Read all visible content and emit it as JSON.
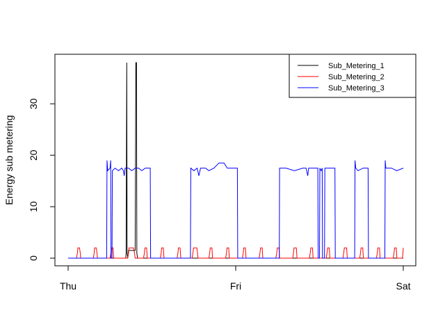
{
  "chart_data": {
    "type": "line",
    "title": "",
    "xlabel": "",
    "ylabel": "Energy sub metering",
    "x_ticks": [
      {
        "label": "Thu",
        "value": 0
      },
      {
        "label": "Fri",
        "value": 1
      },
      {
        "label": "Sat",
        "value": 2
      }
    ],
    "xlim": [
      0,
      2
    ],
    "y_ticks": [
      0,
      10,
      20,
      30
    ],
    "ylim": [
      0,
      38
    ],
    "legend_position": "top-right",
    "series": [
      {
        "name": "Sub_Metering_1",
        "color": "#000000",
        "points": [
          [
            0,
            0
          ],
          [
            0.344,
            0
          ],
          [
            0.346,
            1
          ],
          [
            0.35,
            38
          ],
          [
            0.352,
            1
          ],
          [
            0.356,
            0
          ],
          [
            0.36,
            1.5
          ],
          [
            0.38,
            1.5
          ],
          [
            0.4,
            1.5
          ],
          [
            0.404,
            38
          ],
          [
            0.408,
            38
          ],
          [
            0.41,
            1
          ],
          [
            0.414,
            0
          ],
          [
            2,
            0
          ]
        ]
      },
      {
        "name": "Sub_Metering_2",
        "color": "#ff0000",
        "points": [
          [
            0,
            0
          ],
          [
            0.05,
            0
          ],
          [
            0.055,
            1
          ],
          [
            0.058,
            2
          ],
          [
            0.068,
            2
          ],
          [
            0.072,
            1
          ],
          [
            0.075,
            0
          ],
          [
            0.15,
            0
          ],
          [
            0.155,
            1
          ],
          [
            0.158,
            2
          ],
          [
            0.168,
            2
          ],
          [
            0.172,
            1
          ],
          [
            0.175,
            0
          ],
          [
            0.25,
            0
          ],
          [
            0.255,
            1
          ],
          [
            0.258,
            2
          ],
          [
            0.268,
            2
          ],
          [
            0.272,
            0
          ],
          [
            0.355,
            0
          ],
          [
            0.36,
            1
          ],
          [
            0.364,
            2
          ],
          [
            0.39,
            2
          ],
          [
            0.396,
            1
          ],
          [
            0.4,
            0
          ],
          [
            0.45,
            0
          ],
          [
            0.455,
            1
          ],
          [
            0.458,
            2
          ],
          [
            0.468,
            2
          ],
          [
            0.472,
            0
          ],
          [
            0.55,
            0
          ],
          [
            0.555,
            1
          ],
          [
            0.558,
            2
          ],
          [
            0.568,
            2
          ],
          [
            0.572,
            0
          ],
          [
            0.65,
            0
          ],
          [
            0.655,
            1
          ],
          [
            0.658,
            2
          ],
          [
            0.668,
            2
          ],
          [
            0.672,
            0
          ],
          [
            0.74,
            0
          ],
          [
            0.745,
            1
          ],
          [
            0.748,
            2
          ],
          [
            0.768,
            2
          ],
          [
            0.772,
            1
          ],
          [
            0.775,
            0
          ],
          [
            0.84,
            0
          ],
          [
            0.845,
            1
          ],
          [
            0.848,
            2
          ],
          [
            0.858,
            2
          ],
          [
            0.862,
            0
          ],
          [
            0.94,
            0
          ],
          [
            0.945,
            1
          ],
          [
            0.948,
            2
          ],
          [
            0.958,
            2
          ],
          [
            0.962,
            0
          ],
          [
            1.04,
            0
          ],
          [
            1.045,
            1
          ],
          [
            1.048,
            2
          ],
          [
            1.058,
            2
          ],
          [
            1.062,
            0
          ],
          [
            1.14,
            0
          ],
          [
            1.145,
            1
          ],
          [
            1.148,
            2
          ],
          [
            1.158,
            2
          ],
          [
            1.162,
            0
          ],
          [
            1.24,
            0
          ],
          [
            1.245,
            1
          ],
          [
            1.248,
            2
          ],
          [
            1.258,
            2
          ],
          [
            1.262,
            0
          ],
          [
            1.34,
            0
          ],
          [
            1.345,
            1
          ],
          [
            1.348,
            2
          ],
          [
            1.362,
            2
          ],
          [
            1.366,
            0
          ],
          [
            1.44,
            0
          ],
          [
            1.445,
            1
          ],
          [
            1.448,
            2
          ],
          [
            1.458,
            2
          ],
          [
            1.462,
            0
          ],
          [
            1.54,
            0
          ],
          [
            1.545,
            1
          ],
          [
            1.548,
            2
          ],
          [
            1.558,
            2
          ],
          [
            1.562,
            0
          ],
          [
            1.64,
            0
          ],
          [
            1.645,
            1
          ],
          [
            1.648,
            2
          ],
          [
            1.662,
            2
          ],
          [
            1.666,
            0
          ],
          [
            1.74,
            0
          ],
          [
            1.745,
            1
          ],
          [
            1.748,
            2
          ],
          [
            1.758,
            2
          ],
          [
            1.762,
            0
          ],
          [
            1.84,
            0
          ],
          [
            1.845,
            1
          ],
          [
            1.848,
            2
          ],
          [
            1.858,
            2
          ],
          [
            1.862,
            0
          ],
          [
            1.94,
            0
          ],
          [
            1.945,
            1
          ],
          [
            1.948,
            2
          ],
          [
            1.958,
            2
          ],
          [
            1.962,
            0
          ],
          [
            1.995,
            0
          ],
          [
            1.998,
            1
          ],
          [
            2,
            2
          ]
        ]
      },
      {
        "name": "Sub_Metering_3",
        "color": "#0000ff",
        "points": [
          [
            0,
            0
          ],
          [
            0.23,
            0
          ],
          [
            0.232,
            19
          ],
          [
            0.236,
            17
          ],
          [
            0.25,
            17.5
          ],
          [
            0.254,
            19
          ],
          [
            0.256,
            0
          ],
          [
            0.262,
            0
          ],
          [
            0.264,
            17
          ],
          [
            0.28,
            17.5
          ],
          [
            0.3,
            17
          ],
          [
            0.32,
            17.5
          ],
          [
            0.33,
            17
          ],
          [
            0.335,
            16
          ],
          [
            0.34,
            17.5
          ],
          [
            0.36,
            17.5
          ],
          [
            0.38,
            17
          ],
          [
            0.4,
            17.5
          ],
          [
            0.42,
            17.5
          ],
          [
            0.44,
            17
          ],
          [
            0.46,
            17.5
          ],
          [
            0.49,
            17.5
          ],
          [
            0.492,
            0
          ],
          [
            0.73,
            0
          ],
          [
            0.732,
            17.5
          ],
          [
            0.75,
            17
          ],
          [
            0.77,
            17.5
          ],
          [
            0.78,
            16
          ],
          [
            0.79,
            17.5
          ],
          [
            0.82,
            17.5
          ],
          [
            0.84,
            17
          ],
          [
            0.87,
            17.5
          ],
          [
            0.9,
            18.5
          ],
          [
            0.93,
            18.5
          ],
          [
            0.95,
            17.5
          ],
          [
            0.98,
            17.5
          ],
          [
            1.01,
            17.5
          ],
          [
            1.012,
            0
          ],
          [
            1.26,
            0
          ],
          [
            1.262,
            17.5
          ],
          [
            1.3,
            17.5
          ],
          [
            1.35,
            17
          ],
          [
            1.4,
            17.5
          ],
          [
            1.42,
            17.5
          ],
          [
            1.43,
            16
          ],
          [
            1.435,
            17.5
          ],
          [
            1.48,
            17.5
          ],
          [
            1.49,
            17.5
          ],
          [
            1.492,
            0
          ],
          [
            1.5,
            0
          ],
          [
            1.502,
            17.5
          ],
          [
            1.51,
            17
          ],
          [
            1.516,
            17.5
          ],
          [
            1.518,
            0
          ],
          [
            1.53,
            0
          ],
          [
            1.532,
            17.5
          ],
          [
            1.56,
            17.5
          ],
          [
            1.592,
            17.5
          ],
          [
            1.594,
            0
          ],
          [
            1.71,
            0
          ],
          [
            1.712,
            19
          ],
          [
            1.716,
            17.5
          ],
          [
            1.73,
            17
          ],
          [
            1.76,
            17.5
          ],
          [
            1.79,
            17.5
          ],
          [
            1.792,
            0
          ],
          [
            1.89,
            0
          ],
          [
            1.892,
            19
          ],
          [
            1.896,
            17.5
          ],
          [
            1.93,
            17.5
          ],
          [
            1.96,
            17
          ],
          [
            2,
            17.5
          ]
        ]
      }
    ]
  }
}
